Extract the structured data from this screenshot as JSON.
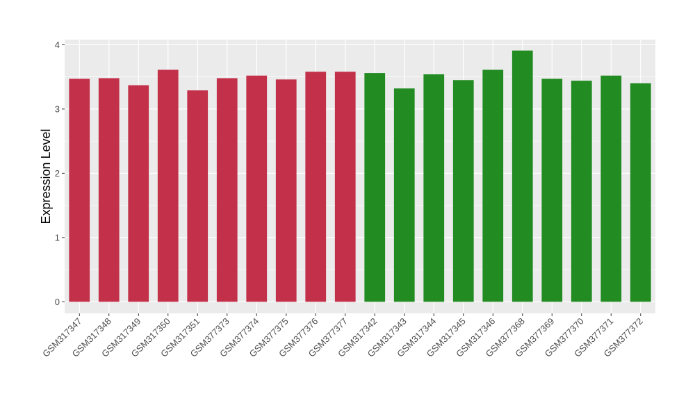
{
  "chart_data": {
    "type": "bar",
    "title": "",
    "xlabel": "",
    "ylabel": "Expression Level",
    "ylim": [
      -0.18,
      4.08
    ],
    "yticks": [
      0,
      1,
      2,
      3,
      4
    ],
    "grid": true,
    "legend": "none",
    "categories": [
      "GSM317347",
      "GSM317348",
      "GSM317349",
      "GSM317350",
      "GSM317351",
      "GSM377373",
      "GSM377374",
      "GSM377375",
      "GSM377376",
      "GSM377377",
      "GSM317342",
      "GSM317343",
      "GSM317344",
      "GSM317345",
      "GSM317346",
      "GSM377368",
      "GSM377369",
      "GSM377370",
      "GSM377371",
      "GSM377372"
    ],
    "values": [
      3.47,
      3.48,
      3.37,
      3.61,
      3.29,
      3.48,
      3.52,
      3.46,
      3.58,
      3.58,
      3.56,
      3.32,
      3.54,
      3.45,
      3.61,
      3.91,
      3.47,
      3.44,
      3.52,
      3.4
    ],
    "bar_colors": [
      "#c3304a",
      "#c3304a",
      "#c3304a",
      "#c3304a",
      "#c3304a",
      "#c3304a",
      "#c3304a",
      "#c3304a",
      "#c3304a",
      "#c3304a",
      "#228b22",
      "#228b22",
      "#228b22",
      "#228b22",
      "#228b22",
      "#228b22",
      "#228b22",
      "#228b22",
      "#228b22",
      "#228b22"
    ],
    "panel_background": "#ebebeb",
    "grid_color": "#ffffff"
  }
}
